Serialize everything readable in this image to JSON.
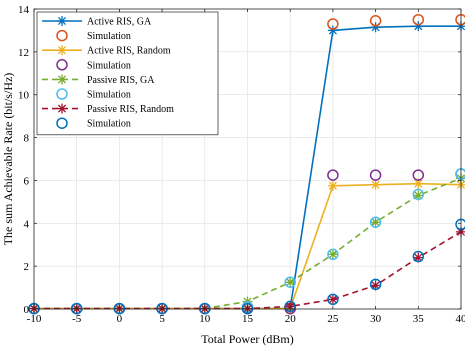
{
  "chart_data": {
    "type": "line",
    "title": "",
    "xlabel": "Total Power (dBm)",
    "ylabel": "The sum Achievable Rate (bit/s/Hz)",
    "xlim": [
      -10,
      40
    ],
    "ylim": [
      0,
      14
    ],
    "xticks": [
      "-10",
      "-5",
      "0",
      "5",
      "10",
      "15",
      "20",
      "25",
      "30",
      "35",
      "40"
    ],
    "yticks": [
      "0",
      "2",
      "4",
      "6",
      "8",
      "10",
      "12",
      "14"
    ],
    "grid": true,
    "legend_position": "top-left",
    "x": [
      -10,
      -5,
      0,
      5,
      10,
      15,
      20,
      25,
      30,
      35,
      40
    ],
    "series": [
      {
        "name": "Active RIS, GA",
        "kind": "line",
        "marker": "asterisk",
        "dash": "solid",
        "color": "#0072BD",
        "values": [
          0.02,
          0.02,
          0.02,
          0.02,
          0.02,
          0.02,
          0.02,
          13.0,
          13.15,
          13.2,
          13.2
        ]
      },
      {
        "name": "Simulation",
        "kind": "markers",
        "marker": "circle",
        "color": "#D95319",
        "values": [
          0.02,
          0.02,
          0.02,
          0.02,
          0.02,
          0.02,
          0.02,
          13.3,
          13.45,
          13.5,
          13.5
        ]
      },
      {
        "name": "Active RIS, Random",
        "kind": "line",
        "marker": "asterisk",
        "dash": "solid",
        "color": "#EDB120",
        "values": [
          0.02,
          0.02,
          0.02,
          0.02,
          0.02,
          0.02,
          0.02,
          5.75,
          5.8,
          5.85,
          5.8
        ]
      },
      {
        "name": "Simulation",
        "kind": "markers",
        "marker": "circle",
        "color": "#7E2F8E",
        "values": [
          0.02,
          0.02,
          0.02,
          0.02,
          0.02,
          0.02,
          0.02,
          6.25,
          6.25,
          6.25,
          6.3
        ]
      },
      {
        "name": "Passive RIS, GA",
        "kind": "line",
        "marker": "asterisk",
        "dash": "dashed",
        "color": "#77AC30",
        "values": [
          0.02,
          0.02,
          0.02,
          0.02,
          0.02,
          0.35,
          1.25,
          2.55,
          4.05,
          5.3,
          6.1
        ]
      },
      {
        "name": "Simulation",
        "kind": "markers",
        "marker": "circle",
        "color": "#4DBEEE",
        "values": [
          0.02,
          0.02,
          0.02,
          0.02,
          0.02,
          0.1,
          1.25,
          2.55,
          4.05,
          5.35,
          6.3
        ]
      },
      {
        "name": "Passive RIS, Random",
        "kind": "line",
        "marker": "asterisk",
        "dash": "dashed",
        "color": "#A2142F",
        "values": [
          0.02,
          0.02,
          0.02,
          0.02,
          0.02,
          0.02,
          0.12,
          0.45,
          1.1,
          2.4,
          3.6
        ]
      },
      {
        "name": "Simulation",
        "kind": "markers",
        "marker": "circle",
        "color": "#0072BD",
        "values": [
          0.02,
          0.02,
          0.02,
          0.02,
          0.02,
          0.02,
          0.12,
          0.45,
          1.15,
          2.45,
          3.95
        ]
      }
    ]
  }
}
